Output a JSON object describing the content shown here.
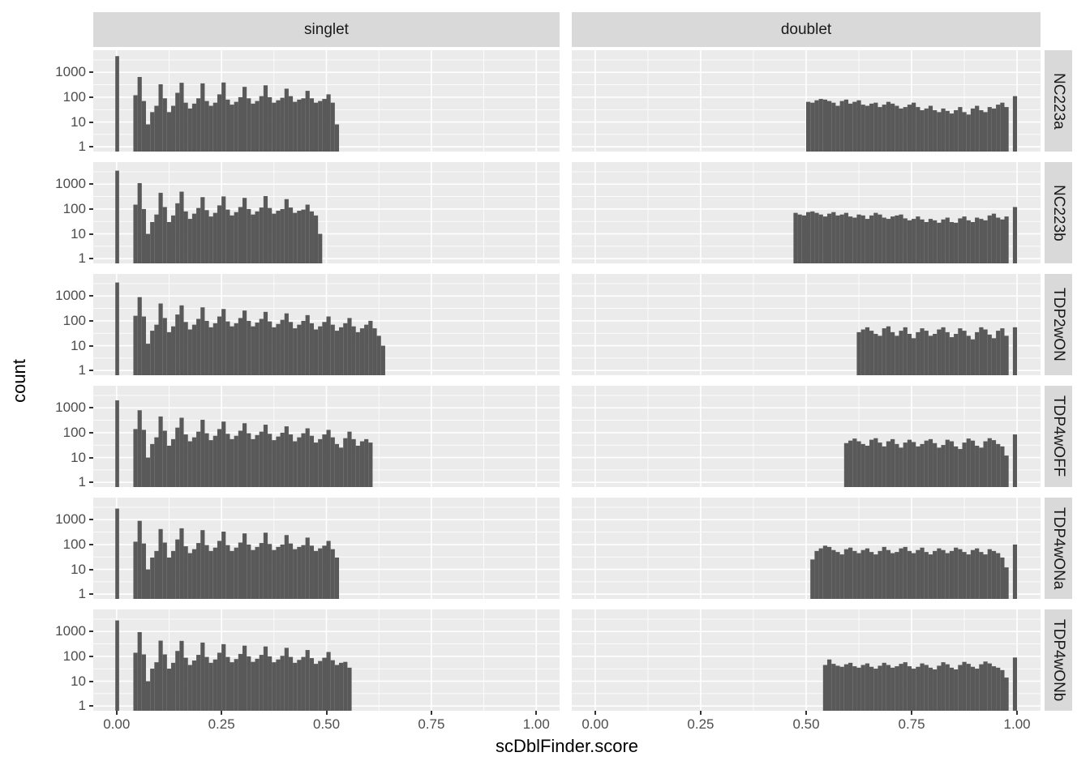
{
  "chart_data": {
    "type": "bar",
    "subtype": "faceted-histogram",
    "title": "",
    "xlabel": "scDblFinder.score",
    "ylabel": "count",
    "y_scale": "log10",
    "x_tick_labels": [
      "0.00",
      "0.25",
      "0.50",
      "0.75",
      "1.00"
    ],
    "x_tick_values": [
      0,
      0.25,
      0.5,
      0.75,
      1
    ],
    "y_tick_labels": [
      "1000",
      "100",
      "10",
      "1"
    ],
    "y_tick_values": [
      1000,
      100,
      10,
      1
    ],
    "ylim": [
      0.65,
      7800
    ],
    "grid": "on",
    "facet_cols": [
      "singlet",
      "doublet"
    ],
    "facet_rows": [
      "NC223a",
      "NC223b",
      "TDP2wON",
      "TDP4wOFF",
      "TDP4wONa",
      "TDP4wONb"
    ],
    "bin_width": 0.01,
    "colors": {
      "bar": "#595959",
      "panel_bg": "#EBEBEB",
      "strip_bg": "#D9D9D9",
      "grid": "#FFFFFF",
      "tick_text": "#4D4D4D",
      "axis_text": "#000000"
    },
    "panels": [
      {
        "row": "NC223a",
        "col": "singlet",
        "start": 0.0,
        "bin_width": 0.01,
        "counts": [
          4500,
          0,
          0,
          0,
          120,
          650,
          70,
          8,
          25,
          45,
          330,
          90,
          25,
          45,
          150,
          380,
          60,
          35,
          55,
          90,
          360,
          70,
          45,
          60,
          130,
          390,
          80,
          50,
          65,
          100,
          260,
          90,
          55,
          70,
          110,
          300,
          100,
          60,
          75,
          95,
          220,
          110,
          65,
          80,
          90,
          180,
          90,
          60,
          70,
          85,
          130,
          60,
          8
        ]
      },
      {
        "row": "NC223a",
        "col": "doublet",
        "start": 0.5,
        "bin_width": 0.01,
        "counts": [
          65,
          60,
          75,
          85,
          80,
          70,
          60,
          45,
          70,
          80,
          55,
          65,
          75,
          50,
          45,
          55,
          60,
          40,
          50,
          65,
          55,
          45,
          35,
          40,
          50,
          60,
          40,
          30,
          35,
          45,
          30,
          25,
          35,
          28,
          22,
          30,
          40,
          25,
          20,
          35,
          45,
          30,
          25,
          40,
          35,
          50,
          60,
          40,
          0,
          110
        ]
      },
      {
        "row": "NC223b",
        "col": "singlet",
        "start": 0.0,
        "bin_width": 0.01,
        "counts": [
          3500,
          0,
          0,
          0,
          150,
          1100,
          100,
          10,
          30,
          60,
          450,
          120,
          30,
          55,
          170,
          500,
          80,
          40,
          65,
          110,
          300,
          90,
          50,
          70,
          140,
          320,
          95,
          55,
          75,
          120,
          280,
          100,
          60,
          80,
          115,
          330,
          110,
          65,
          85,
          100,
          250,
          115,
          70,
          85,
          95,
          150,
          80,
          55,
          10
        ]
      },
      {
        "row": "NC223b",
        "col": "doublet",
        "start": 0.47,
        "bin_width": 0.01,
        "counts": [
          70,
          60,
          55,
          75,
          80,
          70,
          60,
          50,
          65,
          75,
          55,
          60,
          70,
          50,
          45,
          60,
          55,
          40,
          55,
          70,
          60,
          45,
          40,
          50,
          55,
          60,
          42,
          35,
          40,
          50,
          38,
          30,
          40,
          35,
          28,
          38,
          45,
          30,
          28,
          42,
          50,
          35,
          30,
          45,
          40,
          35,
          55,
          65,
          45,
          38,
          50,
          0,
          120
        ]
      },
      {
        "row": "TDP2wON",
        "col": "singlet",
        "start": 0.0,
        "bin_width": 0.01,
        "counts": [
          3500,
          0,
          0,
          0,
          160,
          900,
          150,
          12,
          40,
          70,
          500,
          130,
          35,
          60,
          180,
          420,
          90,
          45,
          70,
          120,
          350,
          100,
          55,
          80,
          150,
          300,
          95,
          60,
          80,
          130,
          260,
          100,
          60,
          85,
          120,
          230,
          95,
          55,
          75,
          110,
          200,
          90,
          50,
          70,
          100,
          170,
          80,
          45,
          60,
          90,
          150,
          70,
          40,
          55,
          80,
          130,
          60,
          35,
          50,
          70,
          100,
          50,
          25,
          10
        ]
      },
      {
        "row": "TDP2wON",
        "col": "doublet",
        "start": 0.62,
        "bin_width": 0.01,
        "counts": [
          35,
          45,
          55,
          40,
          30,
          25,
          50,
          60,
          35,
          25,
          40,
          55,
          30,
          20,
          35,
          50,
          40,
          25,
          30,
          45,
          55,
          35,
          22,
          30,
          50,
          40,
          25,
          18,
          35,
          55,
          45,
          28,
          20,
          40,
          50,
          25,
          0,
          55
        ]
      },
      {
        "row": "TDP4wOFF",
        "col": "singlet",
        "start": 0.0,
        "bin_width": 0.01,
        "counts": [
          2000,
          0,
          0,
          0,
          140,
          800,
          130,
          10,
          35,
          65,
          450,
          120,
          30,
          55,
          160,
          400,
          85,
          45,
          65,
          110,
          330,
          95,
          50,
          75,
          140,
          280,
          90,
          55,
          75,
          120,
          240,
          95,
          55,
          80,
          110,
          210,
          90,
          50,
          70,
          100,
          180,
          85,
          45,
          65,
          95,
          150,
          75,
          40,
          55,
          85,
          130,
          65,
          35,
          25,
          60,
          110,
          55,
          30,
          45,
          55,
          40
        ]
      },
      {
        "row": "TDP4wOFF",
        "col": "doublet",
        "start": 0.59,
        "bin_width": 0.01,
        "counts": [
          38,
          48,
          58,
          45,
          35,
          30,
          52,
          60,
          40,
          28,
          45,
          55,
          35,
          25,
          40,
          52,
          42,
          28,
          35,
          48,
          55,
          38,
          25,
          32,
          52,
          45,
          28,
          22,
          40,
          58,
          48,
          30,
          25,
          45,
          60,
          50,
          35,
          28,
          12,
          0,
          85
        ]
      },
      {
        "row": "TDP4wONa",
        "col": "singlet",
        "start": 0.0,
        "bin_width": 0.01,
        "counts": [
          2800,
          0,
          0,
          0,
          130,
          900,
          110,
          10,
          30,
          55,
          420,
          120,
          30,
          55,
          160,
          450,
          85,
          45,
          65,
          115,
          380,
          95,
          55,
          75,
          140,
          330,
          95,
          55,
          75,
          120,
          280,
          100,
          60,
          80,
          115,
          300,
          105,
          60,
          80,
          100,
          240,
          110,
          65,
          80,
          95,
          190,
          90,
          55,
          70,
          90,
          140,
          65,
          30
        ]
      },
      {
        "row": "TDP4wONa",
        "col": "doublet",
        "start": 0.51,
        "bin_width": 0.01,
        "counts": [
          25,
          55,
          70,
          90,
          80,
          60,
          50,
          40,
          65,
          75,
          55,
          45,
          60,
          70,
          50,
          40,
          55,
          80,
          60,
          45,
          50,
          70,
          80,
          55,
          45,
          60,
          75,
          50,
          40,
          55,
          70,
          60,
          45,
          55,
          75,
          65,
          50,
          40,
          60,
          70,
          50,
          40,
          65,
          55,
          45,
          30,
          12,
          0,
          100
        ]
      },
      {
        "row": "TDP4wONb",
        "col": "singlet",
        "start": 0.0,
        "bin_width": 0.01,
        "counts": [
          2800,
          0,
          0,
          0,
          140,
          950,
          120,
          10,
          32,
          58,
          430,
          120,
          32,
          55,
          165,
          420,
          88,
          45,
          68,
          115,
          360,
          95,
          55,
          75,
          140,
          310,
          95,
          58,
          78,
          125,
          270,
          100,
          60,
          80,
          115,
          250,
          100,
          58,
          75,
          105,
          220,
          95,
          55,
          72,
          95,
          180,
          85,
          50,
          65,
          88,
          150,
          70,
          45,
          55,
          60,
          35
        ]
      },
      {
        "row": "TDP4wONb",
        "col": "doublet",
        "start": 0.54,
        "bin_width": 0.01,
        "counts": [
          45,
          75,
          50,
          42,
          38,
          48,
          55,
          40,
          35,
          45,
          52,
          38,
          32,
          42,
          55,
          45,
          35,
          40,
          50,
          58,
          40,
          32,
          38,
          52,
          45,
          35,
          30,
          42,
          58,
          48,
          35,
          30,
          45,
          60,
          50,
          38,
          32,
          48,
          62,
          52,
          40,
          35,
          28,
          14,
          0,
          90
        ]
      }
    ]
  }
}
